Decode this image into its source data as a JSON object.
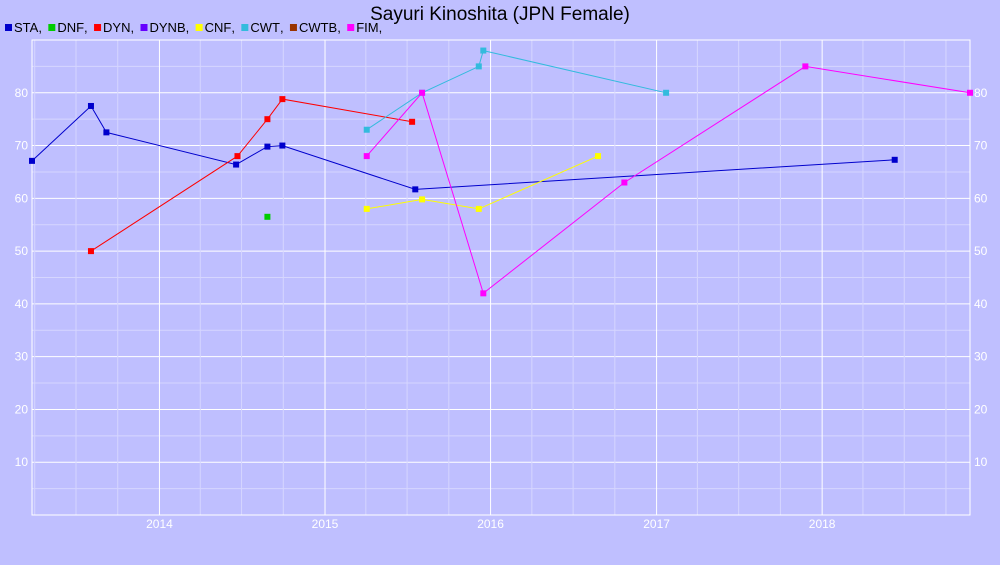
{
  "chart_data": {
    "type": "line",
    "title": "Sayuri Kinoshita (JPN Female)",
    "xlabel": "",
    "ylabel": "",
    "xlim": [
      "2013-03-26",
      "2018-11-23"
    ],
    "ylim": [
      0,
      90
    ],
    "x_ticks": [
      "2014",
      "2015",
      "2016",
      "2017",
      "2018"
    ],
    "y_ticks": [
      10,
      20,
      30,
      40,
      50,
      60,
      70,
      80
    ],
    "grid": true,
    "legend_position": "top-left",
    "series": [
      {
        "name": "STA",
        "color": "#0000cc",
        "points": [
          [
            "2013-03-26",
            67.1
          ],
          [
            "2013-08-03",
            77.5
          ],
          [
            "2013-09-06",
            72.5
          ],
          [
            "2014-06-19",
            66.4
          ],
          [
            "2014-08-27",
            69.8
          ],
          [
            "2014-09-29",
            70.0
          ],
          [
            "2015-07-19",
            61.7
          ],
          [
            "2018-06-10",
            67.3
          ]
        ]
      },
      {
        "name": "DNF",
        "color": "#00cc00",
        "points": [
          [
            "2014-08-27",
            56.5
          ]
        ]
      },
      {
        "name": "DYN",
        "color": "#ff0000",
        "points": [
          [
            "2013-08-03",
            50.0
          ],
          [
            "2014-06-22",
            68.0
          ],
          [
            "2014-08-27",
            75.0
          ],
          [
            "2014-09-29",
            78.8
          ],
          [
            "2015-07-12",
            74.5
          ]
        ]
      },
      {
        "name": "DYNB",
        "color": "#6600ff",
        "points": []
      },
      {
        "name": "CNF",
        "color": "#ffff00",
        "points": [
          [
            "2015-04-03",
            58.0
          ],
          [
            "2015-08-03",
            59.8
          ],
          [
            "2015-12-06",
            58.0
          ],
          [
            "2016-08-25",
            68.0
          ]
        ]
      },
      {
        "name": "CWT",
        "color": "#33bbdd",
        "points": [
          [
            "2015-04-03",
            73.0
          ],
          [
            "2015-08-03",
            80.0
          ],
          [
            "2015-12-06",
            85.0
          ],
          [
            "2015-12-16",
            88.0
          ],
          [
            "2017-01-22",
            80.0
          ]
        ]
      },
      {
        "name": "CWTB",
        "color": "#993300",
        "points": []
      },
      {
        "name": "FIM",
        "color": "#ff00ff",
        "points": [
          [
            "2015-04-03",
            68.0
          ],
          [
            "2015-08-03",
            80.0
          ],
          [
            "2015-12-16",
            42.0
          ],
          [
            "2016-10-22",
            63.0
          ],
          [
            "2017-11-25",
            85.0
          ],
          [
            "2018-11-23",
            80.0
          ]
        ]
      }
    ]
  }
}
